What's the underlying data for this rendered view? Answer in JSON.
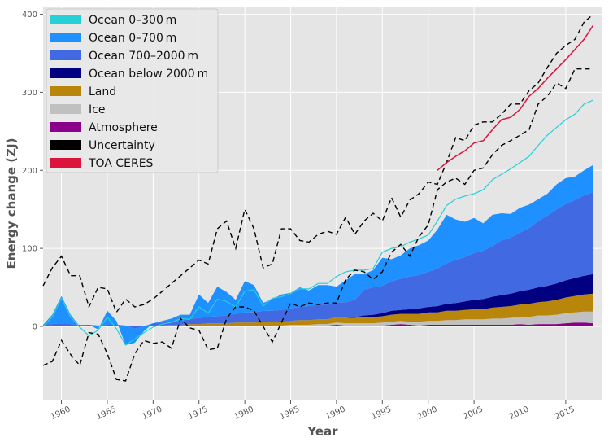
{
  "chart_data": {
    "type": "area",
    "xlabel": "Year",
    "ylabel": "Energy change (ZJ)",
    "xlim": [
      1958,
      2019
    ],
    "ylim": [
      -95,
      410
    ],
    "x_ticks": [
      1960,
      1965,
      1970,
      1975,
      1980,
      1985,
      1990,
      1995,
      2000,
      2005,
      2010,
      2015
    ],
    "y_ticks": [
      0,
      100,
      200,
      300,
      400
    ],
    "grid": true,
    "background": "#e5e5e5",
    "legend_position": "top-left",
    "legend": [
      {
        "label": "Ocean 0–300 m",
        "color": "#27cfd6"
      },
      {
        "label": "Ocean 0–700 m",
        "color": "#1e90ff"
      },
      {
        "label": "Ocean 700–2000 m",
        "color": "#4169e1"
      },
      {
        "label": "Ocean below 2000 m",
        "color": "#000080"
      },
      {
        "label": "Land",
        "color": "#b8860b"
      },
      {
        "label": "Ice",
        "color": "#c0c0c0"
      },
      {
        "label": "Atmosphere",
        "color": "#8b008b"
      },
      {
        "label": "Uncertainty",
        "color": "#000000"
      },
      {
        "label": "TOA CERES",
        "color": "#dc143c"
      }
    ],
    "x": [
      1958,
      1959,
      1960,
      1961,
      1962,
      1963,
      1964,
      1965,
      1966,
      1967,
      1968,
      1969,
      1970,
      1971,
      1972,
      1973,
      1974,
      1975,
      1976,
      1977,
      1978,
      1979,
      1980,
      1981,
      1982,
      1983,
      1984,
      1985,
      1986,
      1987,
      1988,
      1989,
      1990,
      1991,
      1992,
      1993,
      1994,
      1995,
      1996,
      1997,
      1998,
      1999,
      2000,
      2001,
      2002,
      2003,
      2004,
      2005,
      2006,
      2007,
      2008,
      2009,
      2010,
      2011,
      2012,
      2013,
      2014,
      2015,
      2016,
      2017,
      2018
    ],
    "series": [
      {
        "name": "Atmosphere",
        "color": "#8b008b",
        "values": [
          0,
          0,
          0,
          0,
          0,
          0,
          0,
          0,
          0,
          0,
          0,
          0,
          0,
          0,
          0,
          0,
          0,
          0,
          0,
          0,
          0,
          0,
          0,
          0,
          0,
          0,
          0,
          0,
          0,
          0,
          1,
          1,
          2,
          1,
          1,
          1,
          1,
          1,
          2,
          3,
          2,
          1,
          2,
          2,
          2,
          2,
          2,
          2,
          2,
          2,
          2,
          2,
          3,
          2,
          3,
          3,
          3,
          4,
          5,
          5,
          4
        ]
      },
      {
        "name": "Ice",
        "color": "#c0c0c0",
        "values": [
          0,
          0,
          0,
          0,
          0,
          0,
          0,
          0,
          0,
          0,
          0,
          0,
          0,
          0,
          0,
          0,
          0,
          0,
          1,
          1,
          1,
          1,
          1,
          1,
          1,
          1,
          1,
          2,
          2,
          2,
          2,
          2,
          3,
          3,
          3,
          3,
          3,
          4,
          4,
          4,
          4,
          5,
          5,
          5,
          6,
          6,
          7,
          7,
          7,
          8,
          8,
          9,
          9,
          10,
          11,
          11,
          12,
          13,
          13,
          14,
          15
        ]
      },
      {
        "name": "Land",
        "color": "#b8860b",
        "values": [
          0,
          0,
          0,
          0,
          0,
          0,
          0,
          0,
          0,
          0,
          0,
          1,
          1,
          1,
          2,
          2,
          3,
          3,
          3,
          3,
          3,
          4,
          4,
          4,
          5,
          5,
          5,
          5,
          6,
          6,
          6,
          6,
          7,
          7,
          7,
          8,
          8,
          8,
          9,
          9,
          10,
          10,
          11,
          11,
          12,
          12,
          12,
          13,
          13,
          14,
          15,
          15,
          16,
          17,
          17,
          18,
          19,
          20,
          21,
          22,
          23
        ]
      },
      {
        "name": "Ocean below 2000 m",
        "color": "#000080",
        "values": [
          0,
          0,
          0,
          0,
          0,
          0,
          0,
          0,
          0,
          0,
          0,
          0,
          0,
          0,
          0,
          0,
          0,
          0,
          0,
          0,
          0,
          0,
          0,
          0,
          0,
          0,
          0,
          0,
          0,
          0,
          0,
          0,
          0,
          0,
          1,
          2,
          3,
          4,
          5,
          5,
          6,
          7,
          7,
          8,
          9,
          10,
          11,
          12,
          13,
          14,
          15,
          16,
          17,
          18,
          19,
          20,
          21,
          22,
          23,
          24,
          25
        ]
      },
      {
        "name": "Ocean 700–2000 m",
        "color": "#4169e1",
        "values": [
          2,
          3,
          4,
          3,
          2,
          2,
          1,
          2,
          2,
          1,
          -3,
          -1,
          3,
          4,
          4,
          5,
          6,
          8,
          8,
          9,
          10,
          11,
          13,
          13,
          14,
          14,
          15,
          16,
          17,
          18,
          19,
          19,
          19,
          20,
          22,
          33,
          35,
          35,
          38,
          40,
          42,
          43,
          45,
          48,
          52,
          55,
          57,
          60,
          62,
          65,
          70,
          72,
          75,
          79,
          85,
          90,
          95,
          98,
          100,
          103,
          105
        ]
      },
      {
        "name": "Ocean 0–700 m",
        "color": "#1e90ff",
        "values": [
          0,
          12,
          35,
          12,
          -2,
          0,
          -5,
          18,
          5,
          -25,
          -18,
          -6,
          0,
          2,
          4,
          8,
          6,
          30,
          18,
          38,
          30,
          18,
          40,
          35,
          10,
          15,
          20,
          20,
          25,
          20,
          25,
          25,
          20,
          28,
          33,
          20,
          22,
          36,
          28,
          30,
          36,
          38,
          40,
          50,
          62,
          52,
          45,
          45,
          35,
          40,
          35,
          30,
          32,
          30,
          28,
          28,
          32,
          33,
          30,
          32,
          35
        ]
      }
    ],
    "ocean_0_300m": [
      0,
      12,
      36,
      12,
      -1,
      -12,
      -5,
      12,
      -3,
      -24,
      -16,
      -8,
      -1,
      3,
      5,
      10,
      9,
      25,
      17,
      35,
      32,
      25,
      45,
      47,
      26,
      36,
      38,
      42,
      48,
      48,
      55,
      55,
      64,
      70,
      72,
      72,
      74,
      95,
      100,
      102,
      108,
      112,
      117,
      135,
      155,
      163,
      167,
      170,
      175,
      188,
      195,
      202,
      210,
      218,
      232,
      245,
      255,
      265,
      272,
      285,
      290
    ],
    "uncertainty_upper": [
      52,
      75,
      90,
      65,
      65,
      25,
      50,
      48,
      18,
      35,
      25,
      28,
      35,
      45,
      55,
      65,
      75,
      85,
      80,
      125,
      135,
      100,
      150,
      125,
      75,
      80,
      125,
      125,
      110,
      108,
      118,
      122,
      118,
      140,
      118,
      135,
      145,
      135,
      165,
      140,
      162,
      170,
      185,
      182,
      210,
      242,
      238,
      258,
      262,
      262,
      272,
      285,
      285,
      302,
      312,
      332,
      350,
      360,
      368,
      390,
      400
    ],
    "uncertainty_lower": [
      -50,
      -45,
      -18,
      -36,
      -50,
      -8,
      -10,
      -35,
      -68,
      -70,
      -35,
      -18,
      -22,
      -20,
      -28,
      10,
      -2,
      -5,
      -30,
      -28,
      10,
      25,
      25,
      20,
      0,
      -20,
      5,
      30,
      25,
      30,
      28,
      30,
      30,
      60,
      72,
      70,
      60,
      70,
      95,
      105,
      90,
      115,
      130,
      175,
      185,
      190,
      182,
      200,
      203,
      220,
      232,
      238,
      245,
      252,
      285,
      295,
      312,
      305,
      330,
      330,
      330
    ],
    "toa_ceres_x": [
      2001,
      2002,
      2003,
      2004,
      2005,
      2006,
      2007,
      2008,
      2009,
      2010,
      2011,
      2012,
      2013,
      2014,
      2015,
      2016,
      2017,
      2018
    ],
    "toa_ceres": [
      200,
      210,
      218,
      225,
      235,
      238,
      252,
      265,
      268,
      278,
      295,
      305,
      318,
      330,
      342,
      355,
      368,
      386
    ]
  }
}
